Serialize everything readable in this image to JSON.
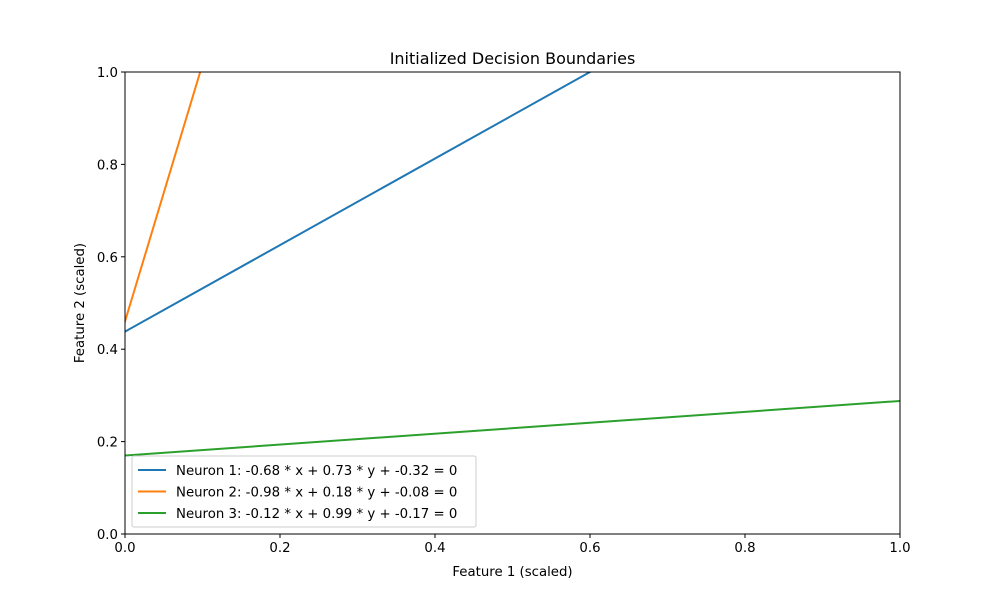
{
  "chart_data": {
    "type": "line",
    "title": "Initialized Decision Boundaries",
    "xlabel": "Feature 1 (scaled)",
    "ylabel": "Feature 2 (scaled)",
    "xlim": [
      0,
      1
    ],
    "ylim": [
      0,
      1
    ],
    "xticks": [
      "0.0",
      "0.2",
      "0.4",
      "0.6",
      "0.8",
      "1.0"
    ],
    "yticks": [
      "0.0",
      "0.2",
      "0.4",
      "0.6",
      "0.8",
      "1.0"
    ],
    "grid": false,
    "legend_position": "lower-left",
    "series": [
      {
        "name": "Neuron 1: -0.68 * x + 0.73 * y + -0.32 = 0",
        "color": "#1f77b4",
        "w1": -0.68,
        "w2": 0.73,
        "b": -0.32,
        "x": [
          0,
          0.6
        ],
        "y": [
          0.438,
          1.0
        ]
      },
      {
        "name": "Neuron 2: -0.98 * x + 0.18 * y + -0.08 = 0",
        "color": "#ff7f0e",
        "w1": -0.98,
        "w2": 0.18,
        "b": -0.08,
        "x": [
          0,
          0.097
        ],
        "y": [
          0.46,
          1.0
        ]
      },
      {
        "name": "Neuron 3: -0.12 * x + 0.99 * y + -0.17 = 0",
        "color": "#2ca02c",
        "w1": -0.12,
        "w2": 0.99,
        "b": -0.17,
        "x": [
          0,
          1.0
        ],
        "y": [
          0.17,
          0.288
        ]
      }
    ]
  }
}
